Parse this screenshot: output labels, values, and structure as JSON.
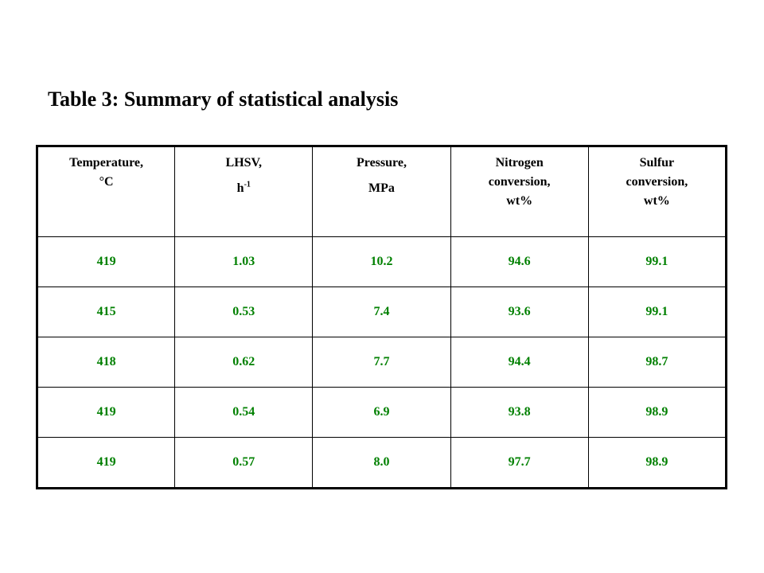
{
  "title": "Table 3: Summary of statistical analysis",
  "table": {
    "headers": [
      {
        "line1": "Temperature,",
        "line2": "°C"
      },
      {
        "line1": "LHSV,",
        "line2_base": "h",
        "line2_sup": "-1"
      },
      {
        "line1": "Pressure,",
        "line2": "MPa"
      },
      {
        "line1": "Nitrogen",
        "line2": "conversion,",
        "line3": "wt%"
      },
      {
        "line1": "Sulfur",
        "line2": "conversion,",
        "line3": "wt%"
      }
    ],
    "rows": [
      [
        "419",
        "1.03",
        "10.2",
        "94.6",
        "99.1"
      ],
      [
        "415",
        "0.53",
        "7.4",
        "93.6",
        "99.1"
      ],
      [
        "418",
        "0.62",
        "7.7",
        "94.4",
        "98.7"
      ],
      [
        "419",
        "0.54",
        "6.9",
        "93.8",
        "98.9"
      ],
      [
        "419",
        "0.57",
        "8.0",
        "97.7",
        "98.9"
      ]
    ]
  },
  "colors": {
    "header_text": "#000000",
    "cell_text": "#008000",
    "border": "#000000",
    "background": "#ffffff"
  }
}
